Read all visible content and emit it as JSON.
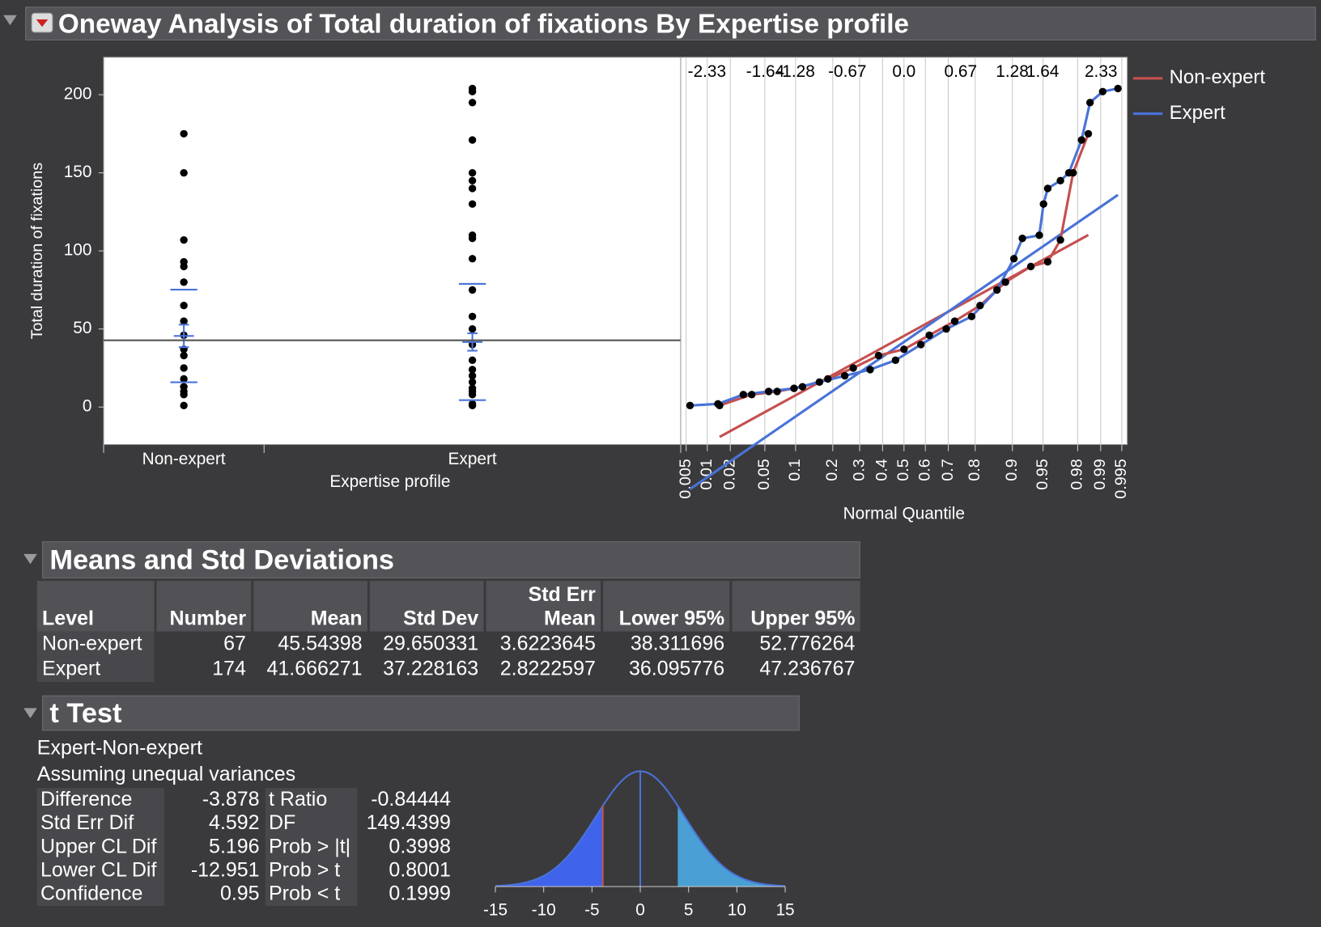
{
  "header": {
    "title": "Oneway Analysis of Total duration of fixations By Expertise profile"
  },
  "chart_data": [
    {
      "type": "oneway",
      "x_label": "Expertise profile",
      "y_label": "Total duration of fixations",
      "categories": [
        "Non-expert",
        "Expert"
      ],
      "ylim": [
        -24,
        224
      ],
      "yticks": [
        0,
        50,
        100,
        150,
        200
      ],
      "grand_mean": 42.74,
      "point_color": "#000000",
      "mean_color": "#4a72d8",
      "grand_mean_color": "#555555"
    },
    {
      "type": "normal_quantile",
      "x_label": "Normal Quantile",
      "xlim": [
        -2.64,
        2.64
      ],
      "ylim": [
        -24,
        224
      ],
      "xticks": [
        -2.33,
        -1.64,
        -1.28,
        -0.67,
        {
          "value": 0,
          "label": "0.0"
        },
        0.67,
        1.28,
        1.64,
        2.33
      ],
      "xticks_bottom": [
        {
          "value": -2.576,
          "label": "0.005"
        },
        {
          "value": -2.326,
          "label": "0.01"
        },
        {
          "value": -2.054,
          "label": "0.02"
        },
        {
          "value": -1.645,
          "label": "0.05"
        },
        {
          "value": -1.282,
          "label": "0.1"
        },
        {
          "value": -0.842,
          "label": "0.2"
        },
        {
          "value": -0.524,
          "label": "0.3"
        },
        {
          "value": -0.253,
          "label": "0.4"
        },
        {
          "value": 0,
          "label": "0.5"
        },
        {
          "value": 0.253,
          "label": "0.6"
        },
        {
          "value": 0.524,
          "label": "0.7"
        },
        {
          "value": 0.842,
          "label": "0.8"
        },
        {
          "value": 1.282,
          "label": "0.9"
        },
        {
          "value": 1.645,
          "label": "0.95"
        },
        {
          "value": 2.054,
          "label": "0.98"
        },
        {
          "value": 2.326,
          "label": "0.99"
        },
        {
          "value": 2.576,
          "label": "0.995"
        }
      ],
      "grid": true,
      "legend": "right",
      "series": [
        {
          "name": "Non-expert",
          "color": "#c4504f",
          "x": [
            -2.18,
            -1.8,
            -1.5,
            -1.2,
            -0.9,
            -0.6,
            -0.3,
            0,
            0.3,
            0.6,
            0.9,
            1.2,
            1.5,
            1.7,
            1.85,
            2.0,
            2.18
          ],
          "values": [
            1,
            8,
            10,
            13,
            18,
            25,
            33,
            37,
            46,
            55,
            65,
            80,
            90,
            93,
            107,
            150,
            175
          ]
        },
        {
          "name": "Expert",
          "color": "#4a72d8",
          "x": [
            -2.53,
            -2.2,
            -1.9,
            -1.6,
            -1.3,
            -1.0,
            -0.7,
            -0.4,
            -0.1,
            0.2,
            0.5,
            0.8,
            1.1,
            1.3,
            1.4,
            1.6,
            1.65,
            1.7,
            1.85,
            1.95,
            2.1,
            2.2,
            2.35,
            2.53
          ],
          "values": [
            1,
            2,
            8,
            10,
            12,
            16,
            20,
            24,
            30,
            40,
            50,
            58,
            75,
            95,
            108,
            110,
            130,
            140,
            145,
            150,
            171,
            195,
            202,
            204
          ]
        }
      ]
    },
    {
      "type": "density",
      "xlim": [
        -15,
        15
      ],
      "xticks": [
        -15,
        -10,
        -5,
        0,
        5,
        10,
        15
      ],
      "color": "#4a72d8",
      "left_fill": "#3f63ea",
      "right_fill": "#4aa0d4",
      "marker_color": "#c4504f"
    }
  ],
  "means": {
    "title": "Means and Std Deviations",
    "columns": [
      "Level",
      "Number",
      "Mean",
      "Std Dev",
      "Std Err Mean",
      "Lower 95%",
      "Upper 95%"
    ],
    "rows": [
      [
        "Non-expert",
        67,
        45.54398,
        29.650331,
        3.6223645,
        38.311696,
        52.776264
      ],
      [
        "Expert",
        174,
        41.666271,
        37.228163,
        2.8222597,
        36.095776,
        47.236767
      ]
    ]
  },
  "t_test": {
    "title": "t Test",
    "comparison": "Expert-Non-expert",
    "note": "Assuming unequal variances",
    "rows": [
      [
        "Difference",
        -3.878,
        "t Ratio",
        -0.84444
      ],
      [
        "Std Err Dif",
        4.592,
        "DF",
        149.4399
      ],
      [
        "Upper CL Dif",
        5.196,
        "Prob > |t|",
        0.3998
      ],
      [
        "Lower CL Dif",
        -12.951,
        "Prob > t",
        0.8001
      ],
      [
        "Confidence",
        0.95,
        "Prob < t",
        0.1999
      ]
    ]
  }
}
